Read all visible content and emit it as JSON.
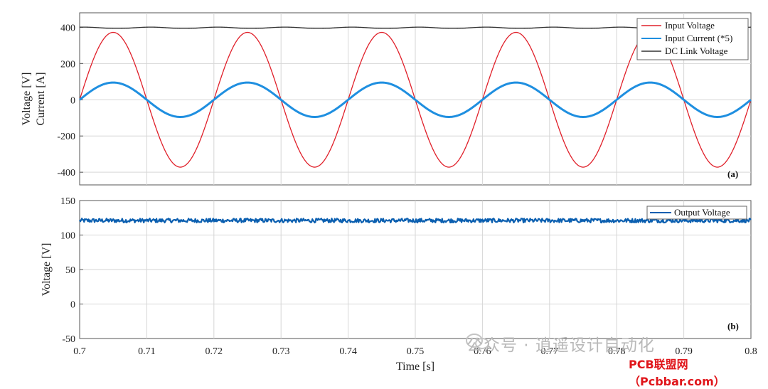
{
  "chart_data": [
    {
      "type": "line",
      "panel_tag": "(a)",
      "ylabels": [
        "Voltage [V]",
        "Current [A]"
      ],
      "xlim": [
        0.7,
        0.8
      ],
      "ylim": [
        -470,
        480
      ],
      "yticks": [
        -400,
        -200,
        0,
        200,
        400
      ],
      "grid": true,
      "legend_position": "top-right",
      "series": [
        {
          "name": "Input Voltage",
          "color": "#e0202a",
          "kind": "sine",
          "amplitude": 372,
          "frequency_hz": 50,
          "phase": 0
        },
        {
          "name": "Input Current (*5)",
          "color": "#1f8fe0",
          "kind": "sine",
          "amplitude": 95,
          "frequency_hz": 50,
          "phase": 0
        },
        {
          "name": "DC Link Voltage",
          "color": "#333333",
          "kind": "ripple",
          "mean": 397,
          "ripple_amplitude": 4,
          "ripple_frequency_hz": 100
        }
      ]
    },
    {
      "type": "line",
      "panel_tag": "(b)",
      "xlabel": "Time [s]",
      "ylabel": "Voltage [V]",
      "xlim": [
        0.7,
        0.8
      ],
      "ylim": [
        -50,
        150
      ],
      "yticks": [
        -50,
        0,
        50,
        100,
        150
      ],
      "xticks": [
        0.7,
        0.71,
        0.72,
        0.73,
        0.74,
        0.75,
        0.76,
        0.77,
        0.78,
        0.79,
        0.8
      ],
      "xtick_labels": [
        "0.7",
        "0.71",
        "0.72",
        "0.73",
        "0.74",
        "0.75",
        "0.76",
        "0.77",
        "0.78",
        "0.79",
        "0.8"
      ],
      "grid": true,
      "legend_position": "top-right",
      "series": [
        {
          "name": "Output Voltage",
          "color": "#0b5fb0",
          "kind": "noise",
          "mean": 121,
          "noise_amplitude": 3
        }
      ]
    }
  ],
  "watermark": {
    "text": "公众号 · 逍遥设计自动化",
    "site": "PCB联盟网（Pcbbar.com）",
    "icon": "wechat-icon"
  }
}
